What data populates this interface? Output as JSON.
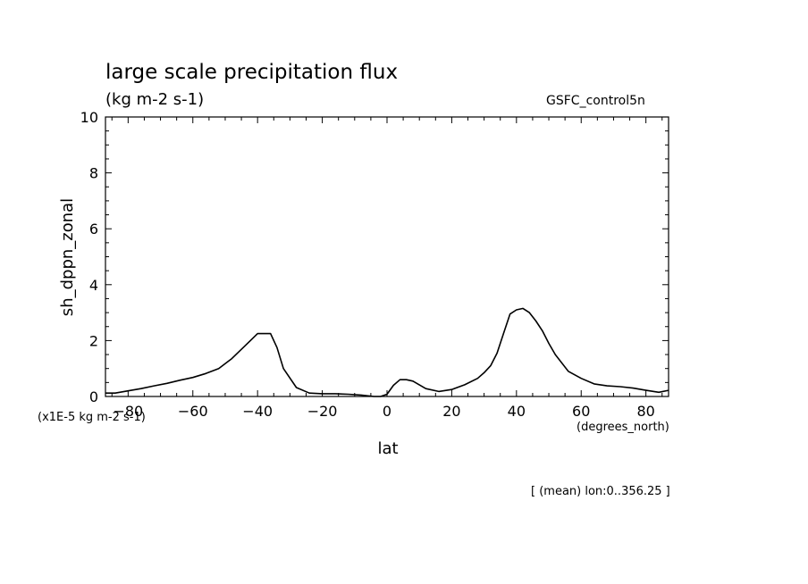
{
  "chart_data": {
    "type": "line",
    "title": "large scale precipitation flux",
    "units_label": "(kg m-2 s-1)",
    "source_label": "GSFC_control5n",
    "ylabel": "sh_dppn_zonal",
    "xlabel": "lat",
    "scale_label": "(x1E-5 kg m-2 s-1)",
    "xunits_label": "(degrees_north)",
    "footer": "[ (mean) lon:0..356.25 ]",
    "xlim": [
      -87,
      87
    ],
    "ylim": [
      0,
      10
    ],
    "xticks": [
      -80,
      -60,
      -40,
      -20,
      0,
      20,
      40,
      60,
      80
    ],
    "xtick_labels": [
      "−80",
      "−60",
      "−40",
      "−20",
      "0",
      "20",
      "40",
      "60",
      "80"
    ],
    "yticks": [
      0,
      2,
      4,
      6,
      8,
      10
    ],
    "ytick_labels": [
      "0",
      "2",
      "4",
      "6",
      "8",
      "10"
    ],
    "grid": false,
    "line_color": "#000000",
    "series": [
      {
        "x": [
          -87,
          -84,
          -80,
          -76,
          -72,
          -68,
          -64,
          -60,
          -56,
          -52,
          -48,
          -44,
          -40,
          -38,
          -36,
          -34,
          -32,
          -28,
          -24,
          -20,
          -16,
          -12,
          -8,
          -4,
          -2,
          0,
          2,
          4,
          6,
          8,
          12,
          16,
          20,
          24,
          28,
          30,
          32,
          34,
          36,
          38,
          40,
          42,
          44,
          46,
          48,
          50,
          52,
          56,
          60,
          64,
          68,
          72,
          76,
          80,
          84,
          87
        ],
        "y": [
          0.12,
          0.12,
          0.2,
          0.28,
          0.38,
          0.47,
          0.58,
          0.68,
          0.82,
          1.0,
          1.35,
          1.8,
          2.25,
          2.25,
          2.25,
          1.75,
          1.0,
          0.32,
          0.12,
          0.1,
          0.1,
          0.08,
          0.05,
          0.0,
          0.0,
          0.08,
          0.4,
          0.6,
          0.6,
          0.55,
          0.28,
          0.18,
          0.25,
          0.42,
          0.65,
          0.85,
          1.1,
          1.55,
          2.25,
          2.95,
          3.1,
          3.15,
          3.0,
          2.7,
          2.35,
          1.9,
          1.5,
          0.9,
          0.65,
          0.45,
          0.38,
          0.35,
          0.3,
          0.22,
          0.15,
          0.22
        ]
      }
    ]
  }
}
